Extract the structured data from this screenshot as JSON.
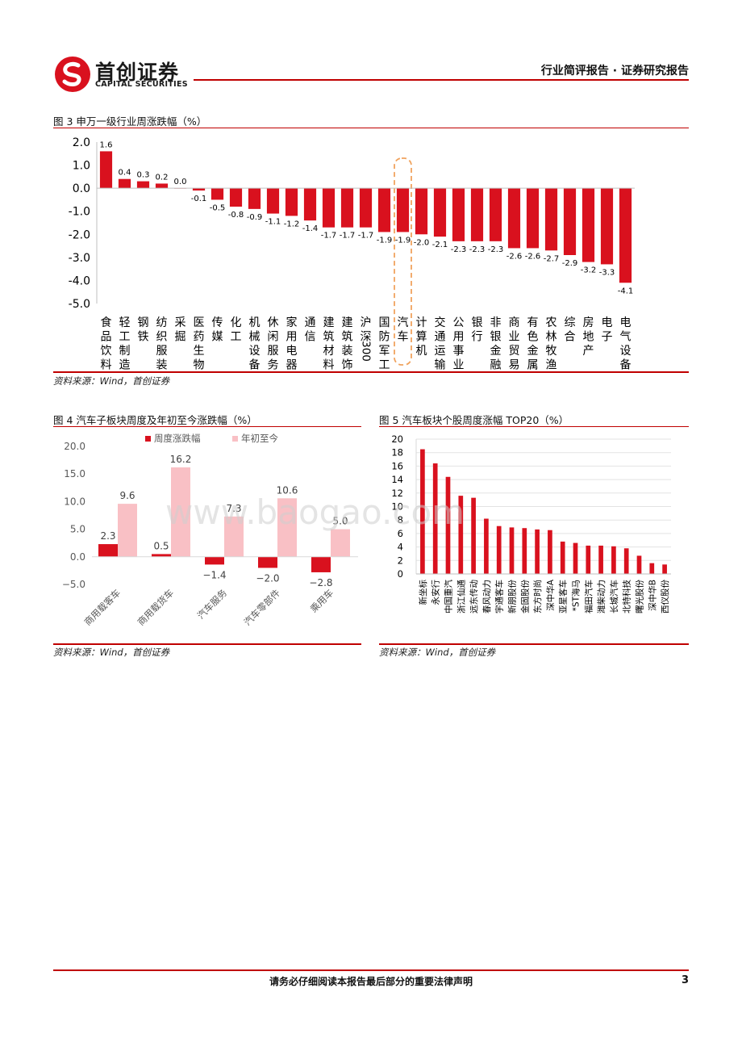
{
  "header": {
    "logo_cn": "首创证券",
    "logo_en": "CAPITAL SECURITIES",
    "report_type": "行业简评报告 · 证券研究报告"
  },
  "figure3": {
    "title": "图 3 申万一级行业周涨跌幅（%）",
    "source": "资料来源：Wind，首创证券"
  },
  "figure4": {
    "title": "图 4 汽车子板块周度及年初至今涨跌幅（%）",
    "source": "资料来源：Wind，首创证券"
  },
  "figure5": {
    "title": "图 5 汽车板块个股周度涨幅 TOP20（%）",
    "source": "资料来源：Wind，首创证券"
  },
  "watermark": "www.baogao.com",
  "footer": {
    "notice": "请务必仔细阅读本报告最后部分的重要法律声明",
    "page": "3"
  },
  "colors": {
    "brand_red": "#c00000",
    "bar_red": "#d9111e",
    "bar_pink": "#f9c0c5",
    "highlight_orange": "#f0a35e"
  },
  "chart_data": [
    {
      "type": "bar",
      "categories": [
        "食品饮料",
        "轻工制造",
        "钢铁",
        "纺织服装",
        "采掘",
        "医药生物",
        "传媒",
        "化工",
        "机械设备",
        "休闲服务",
        "家用电器",
        "通信",
        "建筑材料",
        "建筑装饰",
        "沪深300",
        "国防军工",
        "汽车",
        "计算机",
        "交通运输",
        "公用事业",
        "银行",
        "非银金融",
        "商业贸易",
        "有色金属",
        "农林牧渔",
        "综合",
        "房地产",
        "电子",
        "电气设备"
      ],
      "values": [
        1.6,
        0.4,
        0.3,
        0.2,
        0.0,
        -0.1,
        -0.5,
        -0.8,
        -0.9,
        -1.1,
        -1.2,
        -1.4,
        -1.7,
        -1.7,
        -1.7,
        -1.9,
        -1.9,
        -2.0,
        -2.1,
        -2.3,
        -2.3,
        -2.3,
        -2.6,
        -2.6,
        -2.7,
        -2.9,
        -3.2,
        -3.3,
        -4.1
      ],
      "labels": [
        "1.6",
        "0.4",
        "0.3",
        "0.2",
        "0.0",
        "-0.1",
        "-0.5",
        "-0.8",
        "-0.9",
        "-1.1",
        "-1.2",
        "-1.4",
        "-1.7",
        "-1.7",
        "-1.7",
        "-1.9",
        "-1.9",
        "-2.0",
        "-2.1",
        "-2.3",
        "-2.3",
        "-2.3",
        "-2.6",
        "-2.6",
        "-2.7",
        "-2.9",
        "-3.2",
        "-3.3",
        "-4.1"
      ],
      "yticks": [
        "2.0",
        "1.0",
        "0.0",
        "-1.0",
        "-2.0",
        "-3.0",
        "-4.0",
        "-5.0"
      ],
      "ylim": [
        -5,
        2
      ],
      "highlight": "汽车"
    },
    {
      "type": "bar",
      "categories": [
        "商用载客车",
        "商用载货车",
        "汽车服务",
        "汽车零部件",
        "乘用车"
      ],
      "series": [
        {
          "name": "周度涨跌幅",
          "values": [
            2.3,
            0.5,
            -1.4,
            -2.0,
            -2.8
          ],
          "labels": [
            "2.3",
            "0.5",
            "−1.4",
            "−2.0",
            "−2.8"
          ]
        },
        {
          "name": "年初至今",
          "values": [
            9.6,
            16.2,
            7.3,
            10.6,
            5.0
          ],
          "labels": [
            "9.6",
            "16.2",
            "7.3",
            "10.6",
            "5.0"
          ]
        }
      ],
      "yticks": [
        "20.0",
        "15.0",
        "10.0",
        "5.0",
        "0.0",
        "−5.0"
      ],
      "ylim": [
        -5,
        20
      ],
      "legend": "top"
    },
    {
      "type": "bar",
      "categories": [
        "新坐标",
        "永安行",
        "中国重汽",
        "浙江仙通",
        "远东传动",
        "春风动力",
        "宇通客车",
        "新朋股份",
        "金固股份",
        "东方时尚",
        "深中华A",
        "亚星客车",
        "*ST海马",
        "福田汽车",
        "潍柴动力",
        "长城汽车",
        "北特科技",
        "曙光股份",
        "深中华B",
        "西仪股份"
      ],
      "values": [
        18.5,
        16.4,
        14.4,
        11.6,
        11.3,
        8.2,
        7.1,
        6.9,
        6.8,
        6.6,
        6.5,
        4.8,
        4.6,
        4.2,
        4.2,
        4.1,
        3.8,
        2.7,
        1.6,
        1.4
      ],
      "yticks": [
        "20",
        "18",
        "16",
        "14",
        "12",
        "10",
        "8",
        "6",
        "4",
        "2",
        "0"
      ],
      "ylim": [
        0,
        20
      ]
    }
  ]
}
